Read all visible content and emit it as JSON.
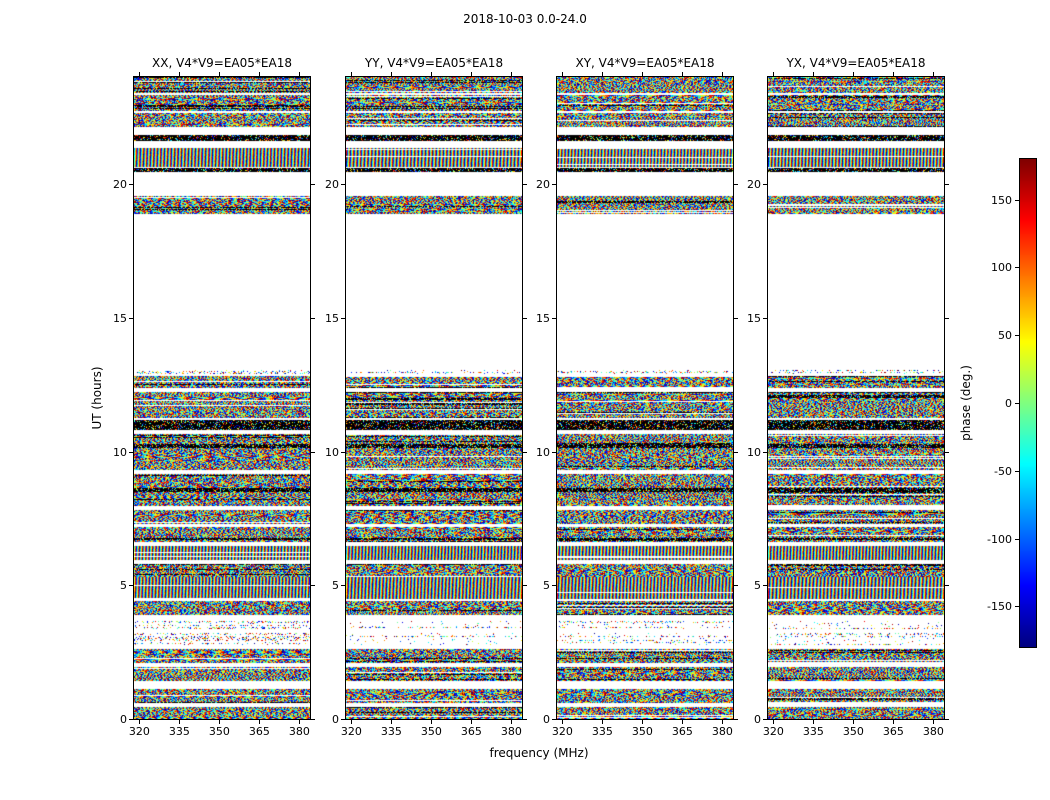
{
  "figure": {
    "title": "2018-10-03 0.0-24.0"
  },
  "chart_data": {
    "type": "heatmap",
    "title": "2018-10-03 0.0-24.0",
    "xlabel": "frequency (MHz)",
    "ylabel": "UT (hours)",
    "xlim": [
      318,
      384
    ],
    "ylim": [
      0.0,
      24.0
    ],
    "xticks": [
      320,
      335,
      350,
      365,
      380
    ],
    "yticks": [
      0,
      5,
      10,
      15,
      20
    ],
    "grid": false,
    "panels": [
      {
        "pol": "XX",
        "label": "XX, V4*V9=EA05*EA18"
      },
      {
        "pol": "YY",
        "label": "YY, V4*V9=EA05*EA18"
      },
      {
        "pol": "XY",
        "label": "XY, V4*V9=EA05*EA18"
      },
      {
        "pol": "YX",
        "label": "YX, V4*V9=EA05*EA18"
      }
    ],
    "colorbar": {
      "label": "phase (deg.)",
      "ticks": [
        150,
        100,
        50,
        0,
        -50,
        -100,
        -150
      ],
      "vmin": -180,
      "vmax": 180,
      "colormap": "jet"
    },
    "bands": [
      {
        "ut": [
          0.0,
          0.45
        ],
        "style": "noise"
      },
      {
        "ut": [
          0.6,
          1.12
        ],
        "style": "noise"
      },
      {
        "ut": [
          1.42,
          1.94
        ],
        "style": "noise"
      },
      {
        "ut": [
          2.09,
          2.61
        ],
        "style": "noise"
      },
      {
        "ut": [
          2.76,
          3.2
        ],
        "style": "sparse"
      },
      {
        "ut": [
          3.35,
          3.65
        ],
        "style": "sparse"
      },
      {
        "ut": [
          3.88,
          4.4
        ],
        "style": "noise"
      },
      {
        "ut": [
          4.47,
          5.29
        ],
        "style": "stripes"
      },
      {
        "ut": [
          5.29,
          5.81
        ],
        "style": "noise"
      },
      {
        "ut": [
          5.96,
          6.48
        ],
        "style": "stripes"
      },
      {
        "ut": [
          6.63,
          7.16
        ],
        "style": "noise"
      },
      {
        "ut": [
          6.68,
          6.78
        ],
        "style": "dark"
      },
      {
        "ut": [
          7.3,
          7.83
        ],
        "style": "noise"
      },
      {
        "ut": [
          7.97,
          8.5
        ],
        "style": "noise"
      },
      {
        "ut": [
          8.5,
          8.64
        ],
        "style": "dark"
      },
      {
        "ut": [
          8.64,
          9.17
        ],
        "style": "noise"
      },
      {
        "ut": [
          9.32,
          10.14
        ],
        "style": "noise"
      },
      {
        "ut": [
          10.14,
          10.28
        ],
        "style": "dark"
      },
      {
        "ut": [
          10.28,
          10.66
        ],
        "style": "noise"
      },
      {
        "ut": [
          10.81,
          11.18
        ],
        "style": "dark"
      },
      {
        "ut": [
          11.26,
          12.22
        ],
        "style": "noise"
      },
      {
        "ut": [
          12.37,
          12.82
        ],
        "style": "noise"
      },
      {
        "ut": [
          12.89,
          13.04
        ],
        "style": "sparse"
      },
      {
        "ut": [
          18.86,
          19.57
        ],
        "style": "noise"
      },
      {
        "ut": [
          20.45,
          20.6
        ],
        "style": "dark"
      },
      {
        "ut": [
          20.65,
          21.36
        ],
        "style": "stripes"
      },
      {
        "ut": [
          21.62,
          21.84
        ],
        "style": "dark"
      },
      {
        "ut": [
          22.14,
          22.66
        ],
        "style": "noise"
      },
      {
        "ut": [
          22.73,
          23.33
        ],
        "style": "noise"
      },
      {
        "ut": [
          23.4,
          24.0
        ],
        "style": "noise"
      }
    ]
  }
}
